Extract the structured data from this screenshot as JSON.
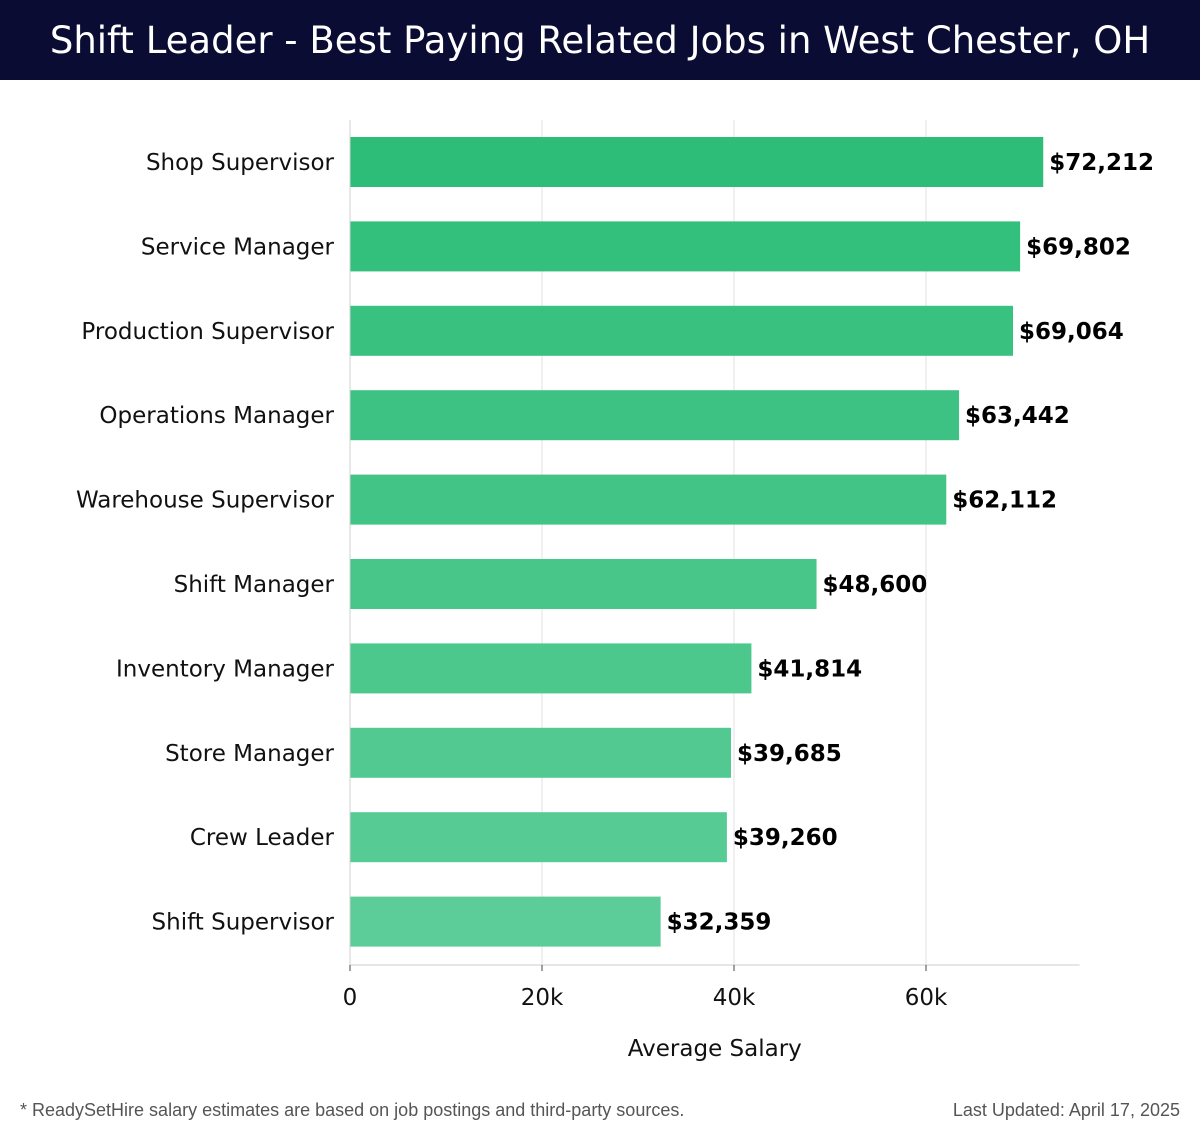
{
  "header": {
    "title": "Shift Leader - Best Paying Related Jobs in West Chester, OH",
    "background": "#0b0c33"
  },
  "footer": {
    "note": "* ReadySetHire salary estimates are based on job postings and third-party sources.",
    "updated": "Last Updated: April 17, 2025"
  },
  "colors": {
    "bar_top": "#2ebd78",
    "bar_bottom": "#5ccd98",
    "grid": "#e2e2e2"
  },
  "chart_data": {
    "type": "bar",
    "orientation": "horizontal",
    "categories": [
      "Shop Supervisor",
      "Service Manager",
      "Production Supervisor",
      "Operations Manager",
      "Warehouse Supervisor",
      "Shift Manager",
      "Inventory Manager",
      "Store Manager",
      "Crew Leader",
      "Shift Supervisor"
    ],
    "values": [
      72212,
      69802,
      69064,
      63442,
      62112,
      48600,
      41814,
      39685,
      39260,
      32359
    ],
    "value_labels": [
      "$72,212",
      "$69,802",
      "$69,064",
      "$63,442",
      "$62,112",
      "$48,600",
      "$41,814",
      "$39,685",
      "$39,260",
      "$32,359"
    ],
    "xlabel": "Average Salary",
    "ylabel": "",
    "xlim": [
      0,
      76000
    ],
    "xticks": [
      0,
      20000,
      40000,
      60000
    ],
    "xtick_labels": [
      "0",
      "20k",
      "40k",
      "60k"
    ],
    "grid": true
  }
}
